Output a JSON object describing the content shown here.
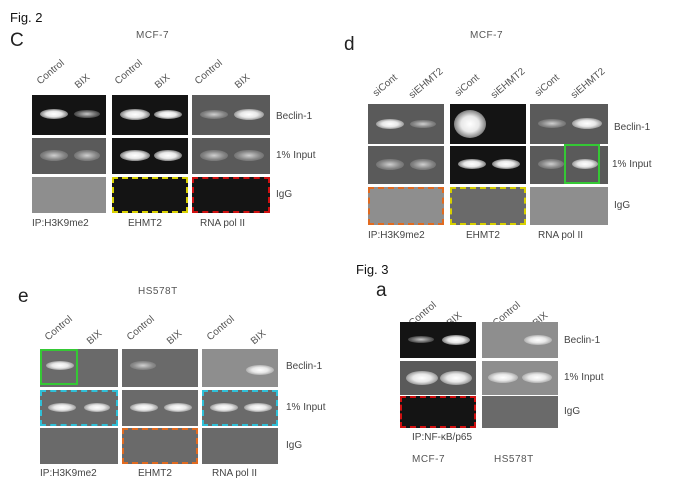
{
  "fig2_label": "Fig. 2",
  "fig3_label": "Fig. 3",
  "panel_c": {
    "letter": "C",
    "cell_line": "MCF-7",
    "lanes": [
      "Control",
      "BIX",
      "Control",
      "BIX",
      "Control",
      "BIX"
    ],
    "rows": [
      "Beclin-1",
      "1% Input",
      "IgG"
    ],
    "ip_labels": [
      "IP:H3K9me2",
      "EHMT2",
      "RNA pol II"
    ]
  },
  "panel_d": {
    "letter": "d",
    "cell_line": "MCF-7",
    "lanes": [
      "siCont",
      "siEHMT2",
      "siCont",
      "siEHMT2",
      "siCont",
      "siEHMT2"
    ],
    "rows": [
      "Beclin-1",
      "1% Input",
      "IgG"
    ],
    "ip_labels": [
      "IP:H3K9me2",
      "EHMT2",
      "RNA pol II"
    ]
  },
  "panel_e": {
    "letter": "e",
    "cell_line": "HS578T",
    "lanes": [
      "Control",
      "BIX",
      "Control",
      "BIX",
      "Control",
      "BIX"
    ],
    "rows": [
      "Beclin-1",
      "1% Input",
      "IgG"
    ],
    "ip_labels": [
      "IP:H3K9me2",
      "EHMT2",
      "RNA pol II"
    ]
  },
  "panel_a": {
    "letter": "a",
    "lanes": [
      "Control",
      "BIX",
      "Control",
      "BIX"
    ],
    "rows": [
      "Beclin-1",
      "1% Input",
      "IgG"
    ],
    "ip_label": "IP:NF-κB/p65",
    "cell_lines": [
      "MCF-7",
      "HS578T"
    ]
  },
  "colors": {
    "yellow_box": "#d8d000",
    "red_box": "#d01010",
    "orange_box": "#e06a20",
    "cyan_box": "#30c0d8",
    "green_box": "#35c835"
  }
}
